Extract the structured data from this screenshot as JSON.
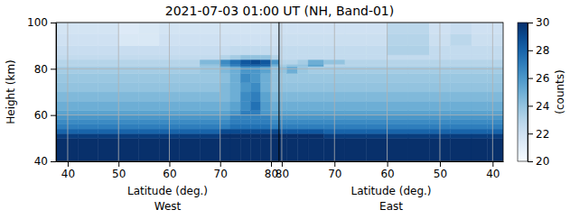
{
  "chart_data": {
    "type": "heatmap",
    "title": "2021-07-03 01:00 UT (NH, Band-01)",
    "y_label": "Height (km)",
    "ylim": [
      40,
      100
    ],
    "yticks": [
      40,
      60,
      80,
      100
    ],
    "grid": true,
    "y_edges": [
      40,
      50,
      52,
      54,
      56,
      58,
      60,
      62,
      66,
      70,
      74,
      78,
      81,
      82,
      84,
      86,
      90,
      95,
      100
    ],
    "colorbar": {
      "label": "(counts)",
      "range": [
        20,
        30
      ],
      "ticks": [
        20,
        22,
        24,
        26,
        28,
        30
      ]
    },
    "panels": [
      {
        "x_label": "Latitude (deg.)",
        "subtitle": "West",
        "xlim": [
          37.7,
          81.6
        ],
        "xticks": [
          40,
          50,
          60,
          70,
          80
        ],
        "x_edges": [
          37.7,
          42,
          46,
          50,
          54,
          58,
          62,
          66,
          70,
          72,
          74,
          76,
          78,
          80,
          81.6
        ],
        "cells": [
          [
            30,
            30,
            30,
            30,
            30,
            30,
            30,
            30,
            30,
            30,
            30,
            30,
            30,
            30
          ],
          [
            29.5,
            29.5,
            29.5,
            29.5,
            29.5,
            29.5,
            29.5,
            29.5,
            30,
            30,
            30,
            30,
            30,
            30
          ],
          [
            28,
            28,
            28,
            28,
            28,
            28,
            28,
            28,
            29,
            29,
            29,
            29,
            29,
            29
          ],
          [
            27,
            27,
            27,
            27,
            27,
            27,
            27,
            27,
            27,
            27.5,
            27.5,
            27.5,
            27.5,
            27
          ],
          [
            26.5,
            26.5,
            26.5,
            26.5,
            26.5,
            26.5,
            26.5,
            26.5,
            26.5,
            27,
            27,
            27,
            27,
            26.5
          ],
          [
            26,
            26,
            26,
            26,
            26,
            26,
            26,
            26,
            26,
            26.8,
            26.8,
            26.8,
            26.8,
            26
          ],
          [
            25.5,
            25.5,
            25.5,
            25.5,
            25.5,
            25.5,
            25.5,
            25.5,
            25.5,
            26,
            27,
            27,
            26,
            25.5
          ],
          [
            25,
            25,
            25,
            25,
            25,
            25,
            25,
            25,
            25,
            25.5,
            26.5,
            27.5,
            25.8,
            25
          ],
          [
            24.5,
            24.5,
            24.5,
            24.5,
            24.5,
            24.5,
            24.5,
            24.5,
            24.5,
            25,
            26.5,
            27,
            25.5,
            24.5
          ],
          [
            24,
            24,
            24,
            24,
            24,
            24,
            24,
            24,
            24.5,
            25,
            26,
            26.5,
            25,
            24
          ],
          [
            23.8,
            23.8,
            23.8,
            23.8,
            23.8,
            23.8,
            23.8,
            23.8,
            24.2,
            25,
            26.5,
            26,
            25,
            24
          ],
          [
            23.5,
            23.5,
            23.5,
            23.5,
            23.5,
            23.5,
            23.5,
            23.8,
            24.5,
            25,
            26,
            26,
            25.5,
            24
          ],
          [
            23,
            23,
            23,
            23,
            23,
            23,
            23,
            24,
            26,
            27,
            28,
            28,
            28,
            25
          ],
          [
            23,
            23,
            23,
            23,
            23,
            23,
            23,
            24.5,
            26.5,
            27.5,
            28.5,
            29,
            28.5,
            26
          ],
          [
            22.5,
            22.5,
            22.5,
            22.5,
            22.5,
            22.5,
            22.5,
            22.5,
            23,
            23.5,
            24,
            24,
            24,
            23
          ],
          [
            22.3,
            22.3,
            22.3,
            22.3,
            22.3,
            22.3,
            22.3,
            22.3,
            22.3,
            22.5,
            22.5,
            22.5,
            22.5,
            22.3
          ],
          [
            22,
            22,
            22,
            21.5,
            21.5,
            22,
            22,
            22,
            22,
            22,
            22,
            22,
            22,
            22
          ],
          [
            21.8,
            21.8,
            21.8,
            21.3,
            21.5,
            21.8,
            21.8,
            21.8,
            21.8,
            21.8,
            21.8,
            21.8,
            21.8,
            21.8
          ]
        ]
      },
      {
        "x_label": "Latitude (deg.)",
        "subtitle": "East",
        "xlim": [
          80.5,
          38.0
        ],
        "xticks": [
          80,
          70,
          60,
          50,
          40
        ],
        "x_edges": [
          80.5,
          79,
          77,
          75,
          72,
          68,
          64,
          60,
          56,
          52,
          48,
          44,
          41,
          38.0
        ],
        "cells": [
          [
            30,
            30,
            30,
            30,
            30,
            30,
            30,
            30,
            30,
            30,
            30,
            30,
            30
          ],
          [
            30,
            30,
            30,
            30,
            29.5,
            29.5,
            29.5,
            29.5,
            29.5,
            29.5,
            29.5,
            29.5,
            29.5
          ],
          [
            28.5,
            28.5,
            28.5,
            28.5,
            28,
            28,
            28,
            28,
            28,
            28,
            28,
            28,
            28
          ],
          [
            27,
            27,
            27,
            27,
            27,
            27,
            27,
            27,
            27,
            27,
            27,
            27,
            27
          ],
          [
            26.5,
            26.5,
            26.5,
            26.5,
            26.5,
            26.5,
            26.5,
            26.5,
            26.5,
            26.5,
            26.5,
            26.5,
            26.5
          ],
          [
            26,
            26,
            26,
            26,
            26,
            26,
            26,
            26,
            26,
            26,
            26,
            26,
            26
          ],
          [
            25.5,
            25.5,
            25.5,
            25.5,
            25.5,
            25.5,
            25.5,
            25.5,
            25.5,
            25.5,
            25.5,
            25.5,
            25.5
          ],
          [
            25,
            25,
            25,
            25,
            25,
            25,
            25,
            25,
            25,
            25,
            25,
            25,
            25
          ],
          [
            24.5,
            24.5,
            24.5,
            24.5,
            24.5,
            24.5,
            24.5,
            24.5,
            24.5,
            24.5,
            24.5,
            24.5,
            24.5
          ],
          [
            24,
            24,
            24,
            24,
            24,
            24,
            24,
            24,
            24,
            24,
            24,
            24,
            24
          ],
          [
            23.8,
            23.8,
            23.8,
            23.8,
            23.8,
            23.8,
            23.8,
            23.8,
            23.8,
            23.8,
            23.8,
            23.8,
            23.8
          ],
          [
            24,
            25,
            23.8,
            23.5,
            23.5,
            23.5,
            23.5,
            23.5,
            23.5,
            23.5,
            23.5,
            23.5,
            23.5
          ],
          [
            23.5,
            24,
            24,
            25.5,
            23,
            23,
            23,
            23,
            23,
            23,
            23,
            23,
            23
          ],
          [
            23,
            23,
            23.5,
            25,
            24,
            23,
            23,
            23,
            23,
            23,
            23,
            23,
            23
          ],
          [
            22.5,
            22.5,
            22.5,
            22.5,
            22.5,
            22.5,
            22.5,
            22.5,
            22.5,
            22.5,
            22.5,
            22.5,
            22.5
          ],
          [
            22.5,
            22.5,
            22.5,
            22.5,
            22.5,
            22.5,
            22.5,
            23.2,
            23.2,
            22.5,
            22.5,
            22.5,
            22.5
          ],
          [
            22.2,
            22.2,
            22.2,
            22.2,
            22.2,
            22.2,
            22.2,
            23,
            23,
            22.2,
            22.8,
            22.2,
            22.2
          ],
          [
            22,
            22,
            22,
            22,
            22,
            22,
            22,
            22.8,
            22.8,
            22,
            22.3,
            22,
            22
          ]
        ]
      }
    ]
  }
}
